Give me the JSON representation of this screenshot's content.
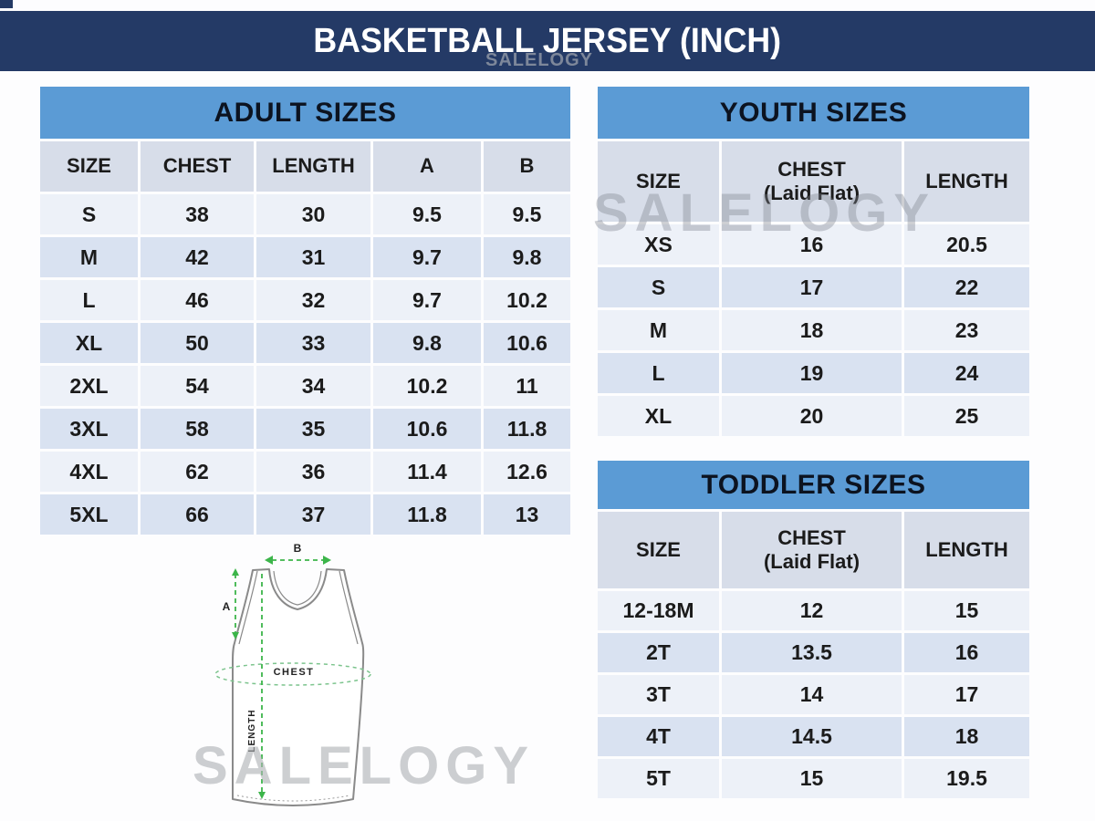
{
  "header": {
    "title": "BASKETBALL JERSEY (INCH)"
  },
  "watermark": {
    "text": "SALELOGY"
  },
  "chart_data": [
    {
      "type": "table",
      "title": "ADULT SIZES",
      "columns": [
        "SIZE",
        "CHEST",
        "LENGTH",
        "A",
        "B"
      ],
      "rows": [
        [
          "S",
          "38",
          "30",
          "9.5",
          "9.5"
        ],
        [
          "M",
          "42",
          "31",
          "9.7",
          "9.8"
        ],
        [
          "L",
          "46",
          "32",
          "9.7",
          "10.2"
        ],
        [
          "XL",
          "50",
          "33",
          "9.8",
          "10.6"
        ],
        [
          "2XL",
          "54",
          "34",
          "10.2",
          "11"
        ],
        [
          "3XL",
          "58",
          "35",
          "10.6",
          "11.8"
        ],
        [
          "4XL",
          "62",
          "36",
          "11.4",
          "12.6"
        ],
        [
          "5XL",
          "66",
          "37",
          "11.8",
          "13"
        ]
      ]
    },
    {
      "type": "table",
      "title": "YOUTH SIZES",
      "columns": [
        "SIZE",
        "CHEST",
        "LENGTH"
      ],
      "chest_note": "(Laid Flat)",
      "rows": [
        [
          "XS",
          "16",
          "20.5"
        ],
        [
          "S",
          "17",
          "22"
        ],
        [
          "M",
          "18",
          "23"
        ],
        [
          "L",
          "19",
          "24"
        ],
        [
          "XL",
          "20",
          "25"
        ]
      ]
    },
    {
      "type": "table",
      "title": "TODDLER SIZES",
      "columns": [
        "SIZE",
        "CHEST",
        "LENGTH"
      ],
      "chest_note": "(Laid Flat)",
      "rows": [
        [
          "12-18M",
          "12",
          "15"
        ],
        [
          "2T",
          "13.5",
          "16"
        ],
        [
          "3T",
          "14",
          "17"
        ],
        [
          "4T",
          "14.5",
          "18"
        ],
        [
          "5T",
          "15",
          "19.5"
        ]
      ]
    }
  ],
  "diagram": {
    "label_a": "A",
    "label_b": "B",
    "label_chest": "CHEST",
    "label_length": "LENGTH"
  },
  "colors": {
    "navy": "#243a66",
    "title_blue": "#5b9bd5",
    "header_cell": "#d7dde9",
    "row_light": "#edf1f8",
    "row_dark": "#d9e2f1",
    "measure_green": "#3cb54a",
    "outline_gray": "#8a8a8a"
  }
}
